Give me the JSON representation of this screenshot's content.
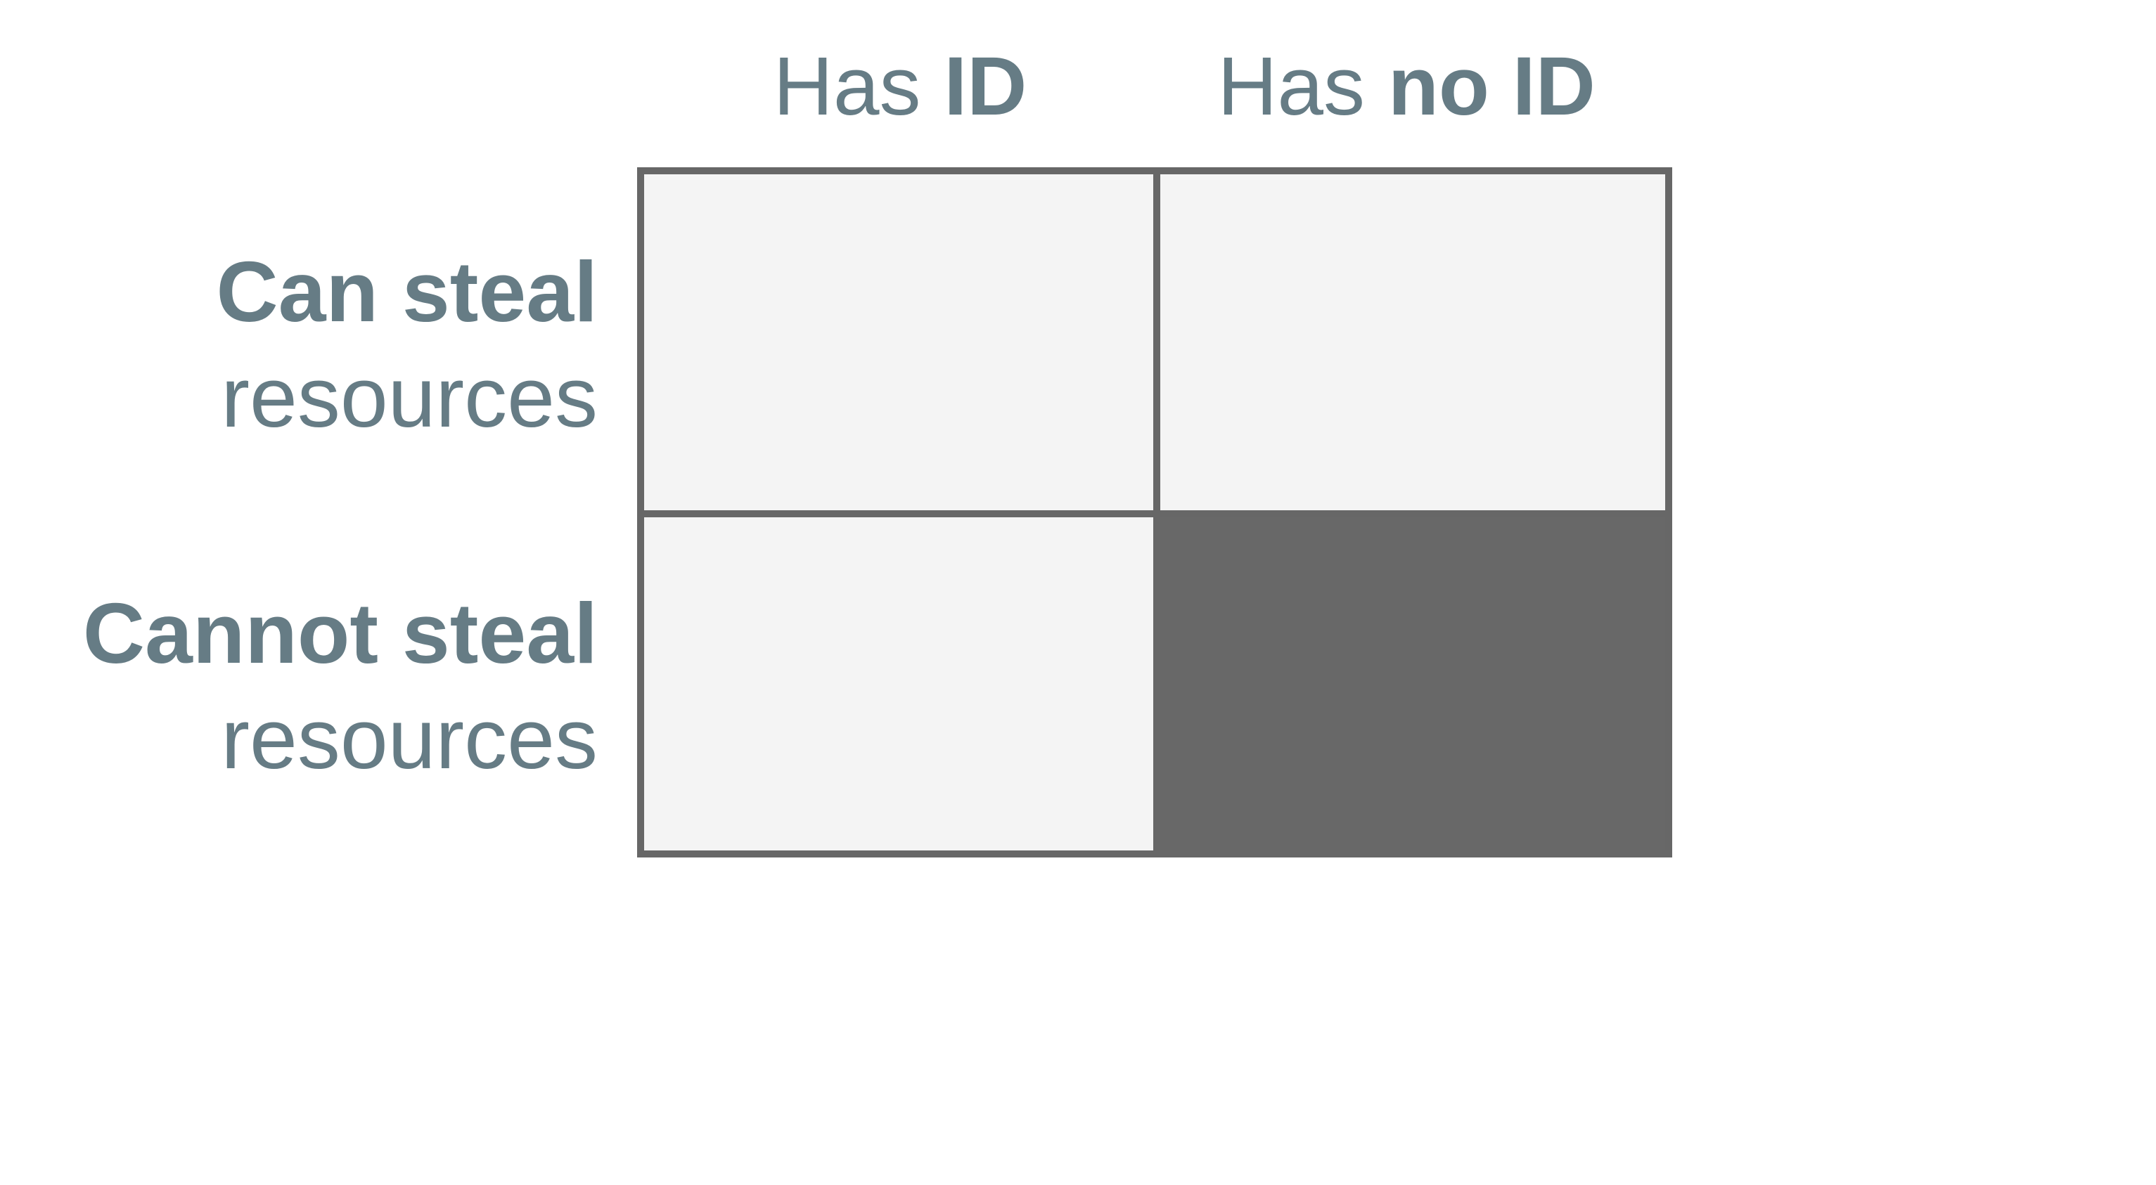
{
  "columns": [
    {
      "prefix": "Has ",
      "emphasis": "ID"
    },
    {
      "prefix": "Has ",
      "emphasis": "no ID"
    }
  ],
  "rows": [
    {
      "emphasis": "Can steal",
      "suffix": "resources"
    },
    {
      "emphasis": "Cannot steal",
      "suffix": "resources"
    }
  ],
  "cells": [
    {
      "row": 0,
      "col": 0,
      "filled": false
    },
    {
      "row": 0,
      "col": 1,
      "filled": false
    },
    {
      "row": 1,
      "col": 0,
      "filled": false
    },
    {
      "row": 1,
      "col": 1,
      "filled": true
    }
  ],
  "colors": {
    "text": "#667C85",
    "border": "#676767",
    "cell_empty": "#F4F4F4",
    "cell_filled": "#686868",
    "background": "#FFFFFF"
  }
}
